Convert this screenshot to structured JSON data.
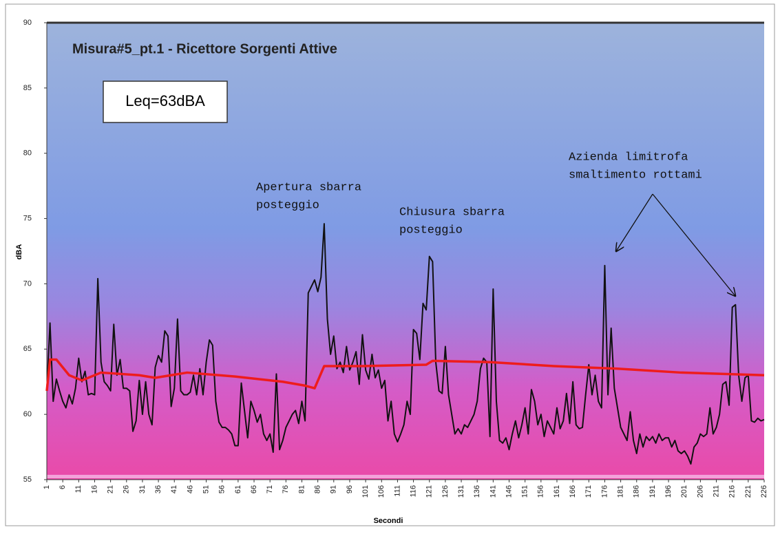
{
  "chart_data": {
    "type": "line",
    "title": "Misura#5_pt.1 - Ricettore Sorgenti Attive",
    "annotations": [
      {
        "lines": [
          "Leq=63dBA"
        ]
      },
      {
        "lines": [
          "Apertura sbarra",
          "posteggio"
        ]
      },
      {
        "lines": [
          "Chiusura sbarra",
          "posteggio"
        ]
      },
      {
        "lines": [
          "Azienda limitrofa",
          "smaltimento rottami"
        ]
      }
    ],
    "xlabel": "Secondi",
    "ylabel": "dBA",
    "xlim": [
      1,
      226
    ],
    "ylim": [
      55,
      90
    ],
    "yticks": [
      55,
      60,
      65,
      70,
      75,
      80,
      85,
      90
    ],
    "xticks": [
      1,
      6,
      11,
      16,
      21,
      26,
      31,
      36,
      41,
      46,
      51,
      56,
      61,
      66,
      71,
      76,
      81,
      86,
      91,
      96,
      101,
      106,
      111,
      116,
      121,
      126,
      131,
      136,
      141,
      146,
      151,
      156,
      161,
      166,
      171,
      176,
      181,
      186,
      191,
      196,
      201,
      206,
      211,
      216,
      221,
      226
    ],
    "series": [
      {
        "color": "#111111",
        "x": [
          1,
          2,
          3,
          4,
          5,
          6,
          7,
          8,
          9,
          10,
          11,
          12,
          13,
          14,
          15,
          16,
          17,
          18,
          19,
          20,
          21,
          22,
          23,
          24,
          25,
          26,
          27,
          28,
          29,
          30,
          31,
          32,
          33,
          34,
          35,
          36,
          37,
          38,
          39,
          40,
          41,
          42,
          43,
          44,
          45,
          46,
          47,
          48,
          49,
          50,
          51,
          52,
          53,
          54,
          55,
          56,
          57,
          58,
          59,
          60,
          61,
          62,
          63,
          64,
          65,
          66,
          67,
          68,
          69,
          70,
          71,
          72,
          73,
          74,
          75,
          76,
          77,
          78,
          79,
          80,
          81,
          82,
          83,
          84,
          85,
          86,
          87,
          88,
          89,
          90,
          91,
          92,
          93,
          94,
          95,
          96,
          97,
          98,
          99,
          100,
          101,
          102,
          103,
          104,
          105,
          106,
          107,
          108,
          109,
          110,
          111,
          112,
          113,
          114,
          115,
          116,
          117,
          118,
          119,
          120,
          121,
          122,
          123,
          124,
          125,
          126,
          127,
          128,
          129,
          130,
          131,
          132,
          133,
          134,
          135,
          136,
          137,
          138,
          139,
          140,
          141,
          142,
          143,
          144,
          145,
          146,
          147,
          148,
          149,
          150,
          151,
          152,
          153,
          154,
          155,
          156,
          157,
          158,
          159,
          160,
          161,
          162,
          163,
          164,
          165,
          166,
          167,
          168,
          169,
          170,
          171,
          172,
          173,
          174,
          175,
          176,
          177,
          178,
          179,
          180,
          181,
          182,
          183,
          184,
          185,
          186,
          187,
          188,
          189,
          190,
          191,
          192,
          193,
          194,
          195,
          196,
          197,
          198,
          199,
          200,
          201,
          202,
          203,
          204,
          205,
          206,
          207,
          208,
          209,
          210,
          211,
          212,
          213,
          214,
          215,
          216,
          217,
          218,
          219,
          220,
          221,
          222,
          223,
          224,
          225,
          226
        ],
        "values": [
          61.8,
          67,
          61,
          62.7,
          61.8,
          61,
          60.5,
          61.5,
          60.8,
          62,
          64.3,
          62.5,
          63.3,
          61.5,
          61.6,
          61.5,
          70.4,
          64,
          62.5,
          62.2,
          61.8,
          66.9,
          63,
          64.2,
          62,
          62,
          61.8,
          58.7,
          59.5,
          62.6,
          60,
          62.5,
          60,
          59.2,
          63.6,
          64.5,
          64,
          66.4,
          66,
          60.6,
          62,
          67.3,
          61.8,
          61.5,
          61.5,
          61.7,
          63,
          61.5,
          63.5,
          61.5,
          64,
          65.7,
          65.3,
          61,
          59.4,
          59,
          59,
          58.8,
          58.5,
          57.6,
          57.6,
          62.4,
          60.3,
          58.2,
          61,
          60.3,
          59.4,
          60,
          58.5,
          58,
          58.5,
          57.1,
          63.1,
          57.3,
          58,
          59,
          59.5,
          60,
          60.3,
          59.3,
          61,
          59.5,
          69.3,
          69.8,
          70.3,
          69.4,
          70.5,
          74.6,
          67.3,
          64.6,
          66,
          63.5,
          64,
          63.2,
          65.2,
          63.4,
          64,
          64.8,
          62.3,
          66.1,
          63.4,
          62.7,
          64.6,
          62.8,
          63.4,
          62,
          62.6,
          59.5,
          61,
          58.5,
          57.9,
          58.5,
          59.2,
          61,
          60,
          66.5,
          66.2,
          64.2,
          68.5,
          68,
          72.1,
          71.7,
          64,
          61.8,
          61.6,
          65.2,
          61.5,
          60,
          58.5,
          58.9,
          58.5,
          59.2,
          59,
          59.5,
          60,
          61,
          63.5,
          64.3,
          64,
          58.3,
          69.6,
          61,
          58,
          57.8,
          58.2,
          57.3,
          58.5,
          59.5,
          58.2,
          59.2,
          60.5,
          58.5,
          61.9,
          61,
          59.2,
          60,
          58.3,
          59.5,
          59,
          58.5,
          60.5,
          58.9,
          59.5,
          61.6,
          59.3,
          62.5,
          59.2,
          58.9,
          59,
          61.5,
          63.8,
          61.5,
          63,
          61,
          60.5,
          71.4,
          61.5,
          66.6,
          62,
          60.5,
          59,
          58.5,
          58,
          60.2,
          58,
          57,
          58.5,
          57.5,
          58.3,
          58,
          58.3,
          57.8,
          58.5,
          58,
          58.2,
          58.2,
          57.5,
          58,
          57.2,
          57,
          57.2,
          56.8,
          56.2,
          57.5,
          57.8,
          58.5,
          58.3,
          58.5,
          60.5,
          58.5,
          59,
          60,
          62.3,
          62.5,
          60.7,
          68.2,
          68.4,
          63,
          61,
          62.8,
          63,
          59.5,
          59.4,
          59.7,
          59.5,
          59.6
        ]
      },
      {
        "color": "#ee1c1c",
        "x": [
          1,
          2,
          4,
          8,
          12,
          16,
          18,
          30,
          35,
          45,
          60,
          75,
          82,
          85,
          88,
          100,
          120,
          122,
          140,
          160,
          180,
          200,
          226
        ],
        "values": [
          61.8,
          64.2,
          64.2,
          63,
          62.6,
          63,
          63.2,
          63,
          62.8,
          63.2,
          62.9,
          62.5,
          62.2,
          62,
          63.7,
          63.7,
          63.8,
          64.1,
          64,
          63.7,
          63.5,
          63.2,
          63
        ]
      }
    ]
  }
}
